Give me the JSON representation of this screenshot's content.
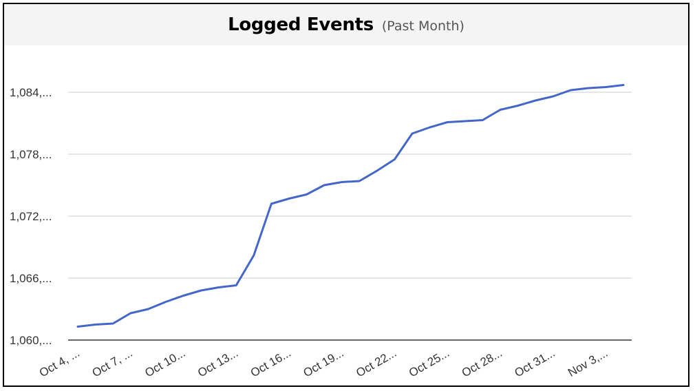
{
  "header": {
    "title": "Logged Events",
    "subtitle": "(Past Month)"
  },
  "colors": {
    "line": "#4466c8",
    "grid": "#cccccc",
    "axis": "#333333",
    "header_bg": "#f4f4f4"
  },
  "chart_data": {
    "type": "line",
    "title": "Logged Events",
    "subtitle": "(Past Month)",
    "xlabel": "",
    "ylabel": "",
    "grid": true,
    "legend": "none",
    "ylim": [
      1060,
      1084
    ],
    "y_ticks": [
      1060,
      1066,
      1072,
      1078,
      1084
    ],
    "y_tick_labels": [
      "1,060,...",
      "1,066,...",
      "1,072,...",
      "1,078,...",
      "1,084,..."
    ],
    "x_tick_labels": [
      "Oct 4, ...",
      "Oct 7, ...",
      "Oct 10...",
      "Oct 13...",
      "Oct 16...",
      "Oct 19...",
      "Oct 22...",
      "Oct 25...",
      "Oct 28...",
      "Oct 31...",
      "Nov 3,..."
    ],
    "x_tick_indices": [
      0,
      3,
      6,
      9,
      12,
      15,
      18,
      21,
      24,
      27,
      30
    ],
    "series": [
      {
        "values": [
          1061.3,
          1061.5,
          1061.6,
          1062.6,
          1063.0,
          1063.7,
          1064.3,
          1064.8,
          1065.1,
          1065.3,
          1068.2,
          1073.2,
          1073.7,
          1074.1,
          1075.0,
          1075.3,
          1075.4,
          1076.4,
          1077.5,
          1080.0,
          1080.6,
          1081.1,
          1081.2,
          1081.3,
          1082.3,
          1082.7,
          1083.2,
          1083.6,
          1084.2,
          1084.4,
          1084.5,
          1084.7
        ]
      }
    ]
  }
}
